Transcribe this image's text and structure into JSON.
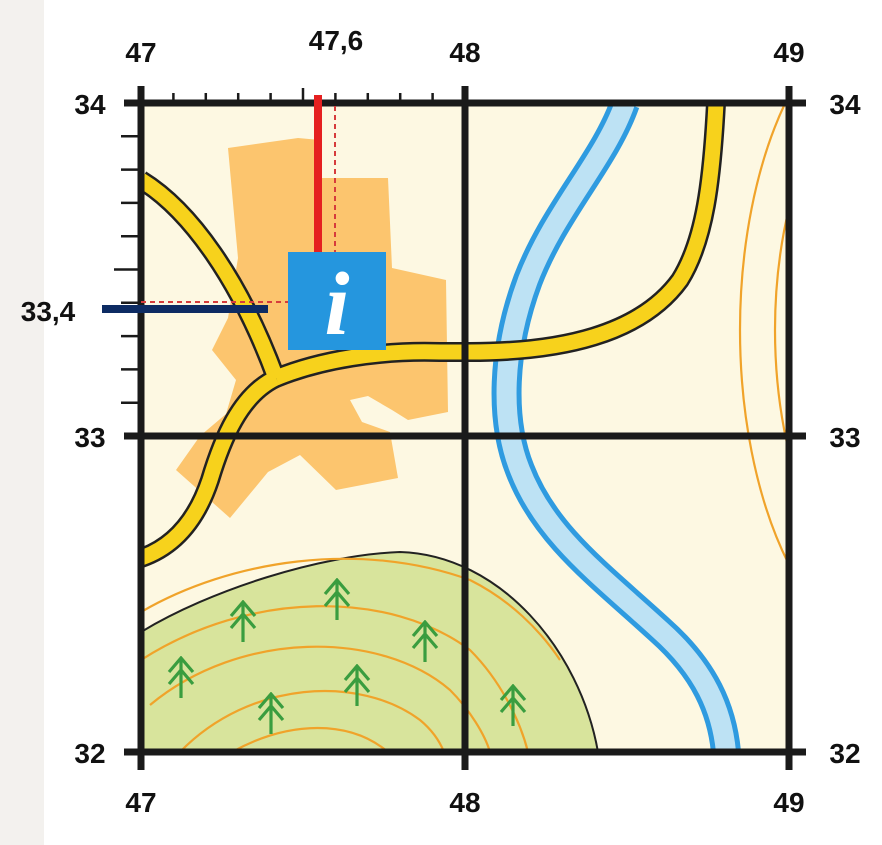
{
  "map": {
    "grid": {
      "easting_labels": [
        "47",
        "48",
        "49"
      ],
      "northing_labels": [
        "34",
        "33",
        "32"
      ]
    },
    "reading": {
      "easting": "47,6",
      "northing": "33,4"
    },
    "info_symbol": {
      "glyph": "i",
      "icon": "information-icon"
    },
    "colors": {
      "paper": "#fdf8e2",
      "built_up_area": "#fcc56e",
      "road_fill": "#f7d21c",
      "river": "#bde2f4",
      "river_edge": "#2f9be0",
      "woodland": "#d8e49c",
      "contour": "#f0a32a",
      "tree": "#3a9d3f",
      "info_box": "#2596de",
      "easting_marker": "#e52020",
      "northing_marker": "#0d2b63"
    }
  }
}
